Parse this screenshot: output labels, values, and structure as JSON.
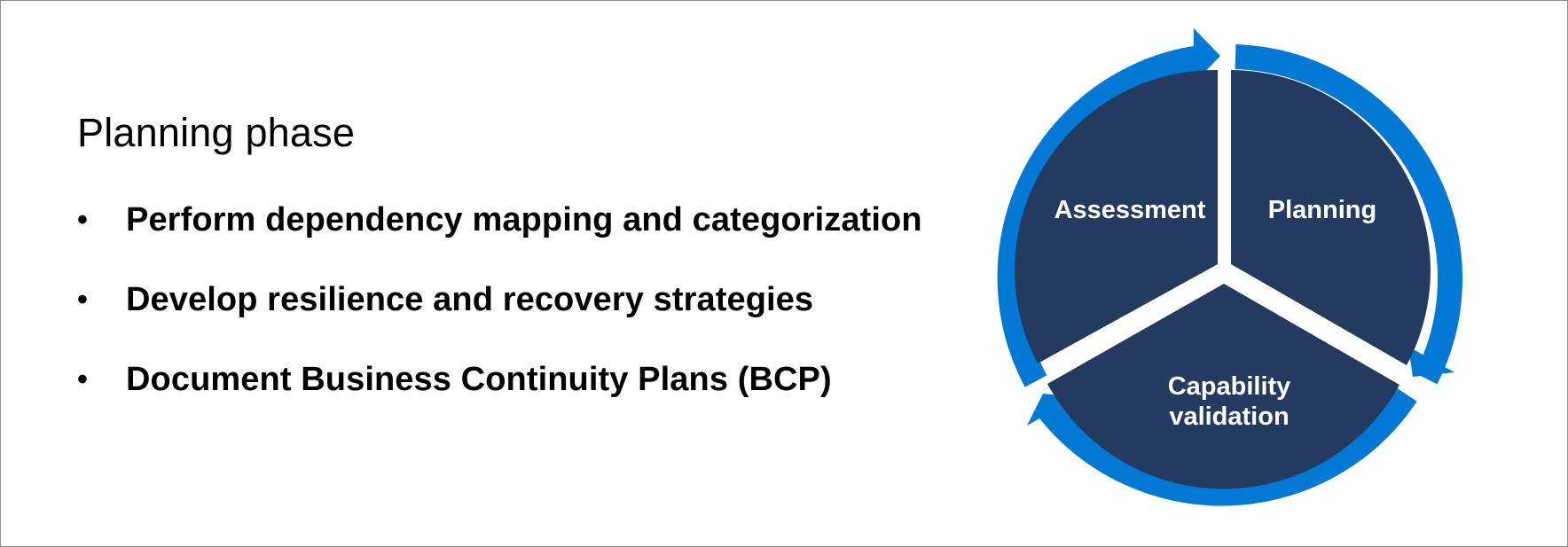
{
  "title": "Planning phase",
  "bullets": [
    "Perform dependency mapping and categorization",
    "Develop resilience and recovery strategies",
    "Document Business Continuity Plans (BCP)"
  ],
  "cycle": {
    "segments": {
      "assessment": "Assessment",
      "planning": "Planning",
      "validation_line1": "Capability",
      "validation_line2": "validation"
    },
    "colors": {
      "segment_fill": "#243a5e",
      "arrow_ring": "#0078d4",
      "label": "#ffffff"
    }
  }
}
